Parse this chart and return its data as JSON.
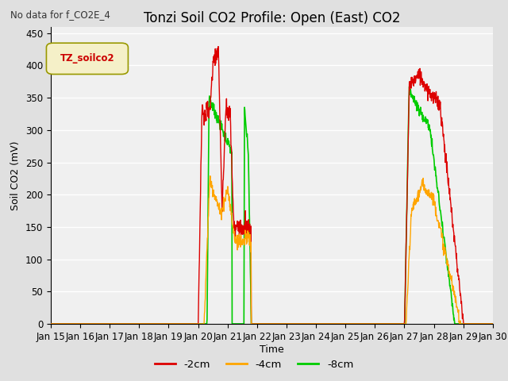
{
  "title": "Tonzi Soil CO2 Profile: Open (East) CO2",
  "suptitle": "No data for f_CO2E_4",
  "ylabel": "Soil CO2 (mV)",
  "xlabel": "Time",
  "ylim": [
    0,
    460
  ],
  "yticks": [
    0,
    50,
    100,
    150,
    200,
    250,
    300,
    350,
    400,
    450
  ],
  "xtick_labels": [
    "Jan 15",
    "Jan 16",
    "Jan 17",
    "Jan 18",
    "Jan 19",
    "Jan 20",
    "Jan 21",
    "Jan 22",
    "Jan 23",
    "Jan 24",
    "Jan 25",
    "Jan 26",
    "Jan 27",
    "Jan 28",
    "Jan 29",
    "Jan 30"
  ],
  "legend_label": "TZ_soilco2",
  "legend_color": "#cc0000",
  "series_labels": [
    "-2cm",
    "-4cm",
    "-8cm"
  ],
  "series_colors": [
    "#dd0000",
    "#ffa500",
    "#00cc00"
  ],
  "background_color": "#e0e0e0",
  "plot_bg_color": "#f0f0f0",
  "grid_color": "#ffffff",
  "title_fontsize": 12,
  "label_fontsize": 9,
  "tick_fontsize": 8.5
}
